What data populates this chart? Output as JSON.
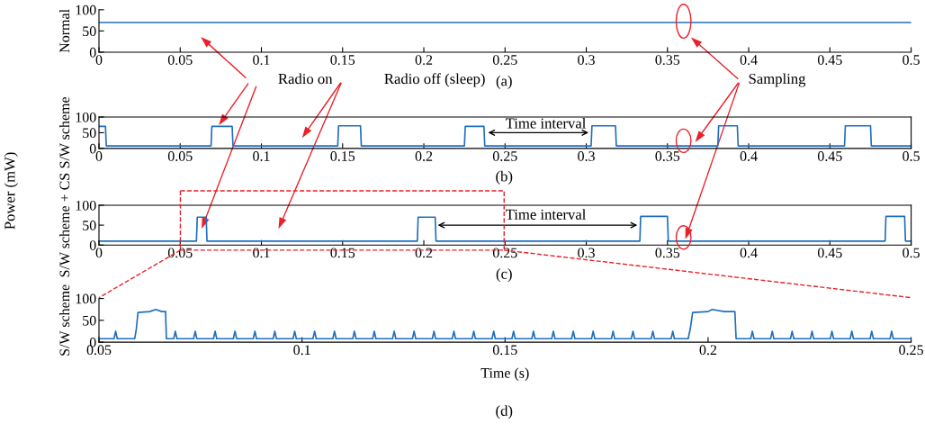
{
  "chart_data": [
    {
      "type": "line",
      "ylabel": "Normal",
      "xlim": [
        0,
        0.5
      ],
      "xticks": [
        0,
        0.05,
        0.1,
        0.15,
        0.2,
        0.25,
        0.3,
        0.35,
        0.4,
        0.45,
        0.5
      ],
      "ylim": [
        0,
        100
      ],
      "yticks": [
        0,
        50,
        100
      ],
      "annotations": [
        "(a)",
        "Radio on",
        "Radio off (sleep)",
        "Sampling"
      ],
      "series": [
        {
          "color": "#1f6fc0",
          "x": [
            0,
            0.5
          ],
          "values": [
            70,
            70
          ]
        }
      ]
    },
    {
      "type": "line",
      "ylabel": "S/W scheme",
      "xlim": [
        0,
        0.5
      ],
      "xticks": [
        0,
        0.05,
        0.1,
        0.15,
        0.2,
        0.25,
        0.3,
        0.35,
        0.4,
        0.45,
        0.5
      ],
      "ylim": [
        0,
        100
      ],
      "yticks": [
        0,
        50,
        100
      ],
      "annotations": [
        "(b)",
        "Time interval",
        "Power (mW)"
      ],
      "series": [
        {
          "color": "#1f6fc0",
          "x": [
            0,
            0.004,
            0.0045,
            0.069,
            0.0695,
            0.082,
            0.0825,
            0.147,
            0.1475,
            0.161,
            0.1615,
            0.225,
            0.2255,
            0.237,
            0.2375,
            0.303,
            0.3035,
            0.318,
            0.3185,
            0.381,
            0.3815,
            0.393,
            0.3935,
            0.459,
            0.4595,
            0.475,
            0.4755,
            0.5
          ],
          "values": [
            70,
            70,
            8,
            8,
            70,
            70,
            8,
            8,
            72,
            72,
            8,
            8,
            70,
            70,
            8,
            8,
            72,
            72,
            8,
            8,
            72,
            72,
            8,
            8,
            72,
            72,
            8,
            8
          ]
        }
      ]
    },
    {
      "type": "line",
      "ylabel": "S/W scheme + CS",
      "xlim": [
        0,
        0.5
      ],
      "xticks": [
        0,
        0.05,
        0.1,
        0.15,
        0.2,
        0.25,
        0.3,
        0.35,
        0.4,
        0.45,
        0.5
      ],
      "ylim": [
        0,
        100
      ],
      "yticks": [
        0,
        50,
        100
      ],
      "annotations": [
        "(c)",
        "Time interval"
      ],
      "series": [
        {
          "color": "#1f6fc0",
          "x": [
            0,
            0.06,
            0.0605,
            0.066,
            0.0665,
            0.196,
            0.1965,
            0.207,
            0.2075,
            0.333,
            0.3335,
            0.35,
            0.3505,
            0.484,
            0.4845,
            0.496,
            0.4965,
            0.5
          ],
          "values": [
            10,
            10,
            70,
            70,
            10,
            10,
            70,
            70,
            10,
            10,
            72,
            72,
            10,
            10,
            72,
            72,
            10,
            10
          ]
        }
      ]
    },
    {
      "type": "line",
      "ylabel": "S/W scheme",
      "xlabel": "Time (s)",
      "xlim": [
        0.05,
        0.25
      ],
      "xticks": [
        0.05,
        0.1,
        0.15,
        0.2,
        0.25
      ],
      "ylim": [
        0,
        100
      ],
      "yticks": [
        0,
        50,
        100
      ],
      "annotations": [
        "(d)"
      ],
      "series": [
        {
          "color": "#1f6fc0",
          "x": [
            0.05,
            0.0537,
            0.0541,
            0.0545,
            0.0588,
            0.0592,
            0.0596,
            0.0625,
            0.064,
            0.0655,
            0.0664,
            0.0666,
            0.0684,
            0.0688,
            0.0692,
            0.0733,
            0.0737,
            0.0741,
            0.0782,
            0.0786,
            0.079,
            0.0831,
            0.0835,
            0.0839,
            0.088,
            0.0884,
            0.0888,
            0.0929,
            0.0933,
            0.0937,
            0.0978,
            0.0982,
            0.0986,
            0.1027,
            0.1031,
            0.1035,
            0.1076,
            0.108,
            0.1084,
            0.1125,
            0.1129,
            0.1133,
            0.1174,
            0.1178,
            0.1182,
            0.1223,
            0.1227,
            0.1231,
            0.1272,
            0.1276,
            0.128,
            0.1321,
            0.1325,
            0.1329,
            0.137,
            0.1374,
            0.1378,
            0.1419,
            0.1423,
            0.1427,
            0.1468,
            0.1472,
            0.1476,
            0.1517,
            0.1521,
            0.1525,
            0.1566,
            0.157,
            0.1574,
            0.1615,
            0.1619,
            0.1623,
            0.1664,
            0.1668,
            0.1672,
            0.1713,
            0.1717,
            0.1721,
            0.1762,
            0.1766,
            0.177,
            0.1811,
            0.1815,
            0.1819,
            0.186,
            0.1864,
            0.1868,
            0.1909,
            0.1913,
            0.1917,
            0.1951,
            0.1956,
            0.1962,
            0.2,
            0.201,
            0.204,
            0.2066,
            0.2069,
            0.2105,
            0.2109,
            0.2113,
            0.2154,
            0.2158,
            0.2162,
            0.2203,
            0.2207,
            0.2211,
            0.2252,
            0.2256,
            0.226,
            0.2301,
            0.2305,
            0.2309,
            0.235,
            0.2354,
            0.2358,
            0.2399,
            0.2403,
            0.2407,
            0.2448,
            0.2452,
            0.2456,
            0.25
          ],
          "values": [
            8,
            8,
            25,
            8,
            8,
            30,
            68,
            70,
            75,
            70,
            70,
            8,
            8,
            25,
            8,
            8,
            25,
            8,
            8,
            25,
            8,
            8,
            25,
            8,
            8,
            25,
            8,
            8,
            25,
            8,
            8,
            25,
            8,
            8,
            25,
            8,
            8,
            25,
            8,
            8,
            25,
            8,
            8,
            25,
            8,
            8,
            25,
            8,
            8,
            25,
            8,
            8,
            25,
            8,
            8,
            25,
            8,
            8,
            25,
            8,
            8,
            25,
            8,
            8,
            25,
            8,
            8,
            25,
            8,
            8,
            25,
            8,
            8,
            25,
            8,
            8,
            25,
            8,
            8,
            25,
            8,
            8,
            25,
            8,
            8,
            25,
            8,
            8,
            25,
            8,
            8,
            30,
            68,
            70,
            75,
            70,
            70,
            8,
            8,
            25,
            8,
            8,
            25,
            8,
            8,
            25,
            8,
            8,
            25,
            8,
            8,
            25,
            8,
            8,
            25,
            8,
            8,
            25,
            8,
            8,
            25,
            8,
            8
          ]
        }
      ]
    }
  ]
}
